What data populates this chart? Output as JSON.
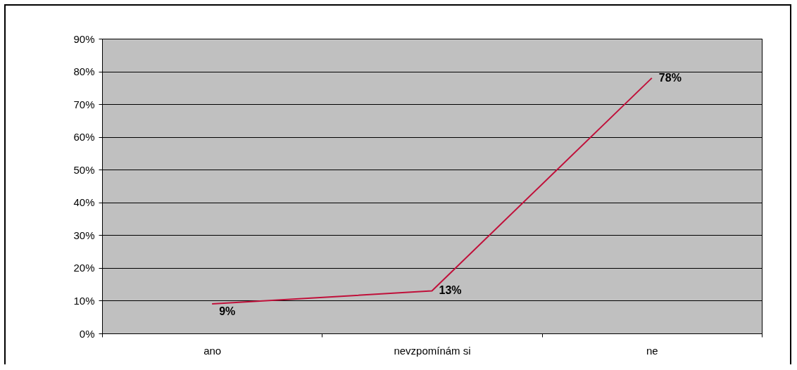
{
  "chart_data": {
    "type": "line",
    "categories": [
      "ano",
      "nevzpomínám si",
      "ne"
    ],
    "series": [
      {
        "color": "#c0103a",
        "values": [
          9,
          13,
          78
        ],
        "value_labels": [
          "9%",
          "13%",
          "78%"
        ]
      }
    ],
    "ylim": [
      0,
      90
    ],
    "yticks": [
      {
        "value": 0,
        "label": "0%"
      },
      {
        "value": 10,
        "label": "10%"
      },
      {
        "value": 20,
        "label": "20%"
      },
      {
        "value": 30,
        "label": "30%"
      },
      {
        "value": 40,
        "label": "40%"
      },
      {
        "value": 50,
        "label": "50%"
      },
      {
        "value": 60,
        "label": "60%"
      },
      {
        "value": 70,
        "label": "70%"
      },
      {
        "value": 80,
        "label": "80%"
      },
      {
        "value": 90,
        "label": "90%"
      }
    ],
    "grid": "y",
    "marker": "none",
    "line_style": "solid"
  }
}
